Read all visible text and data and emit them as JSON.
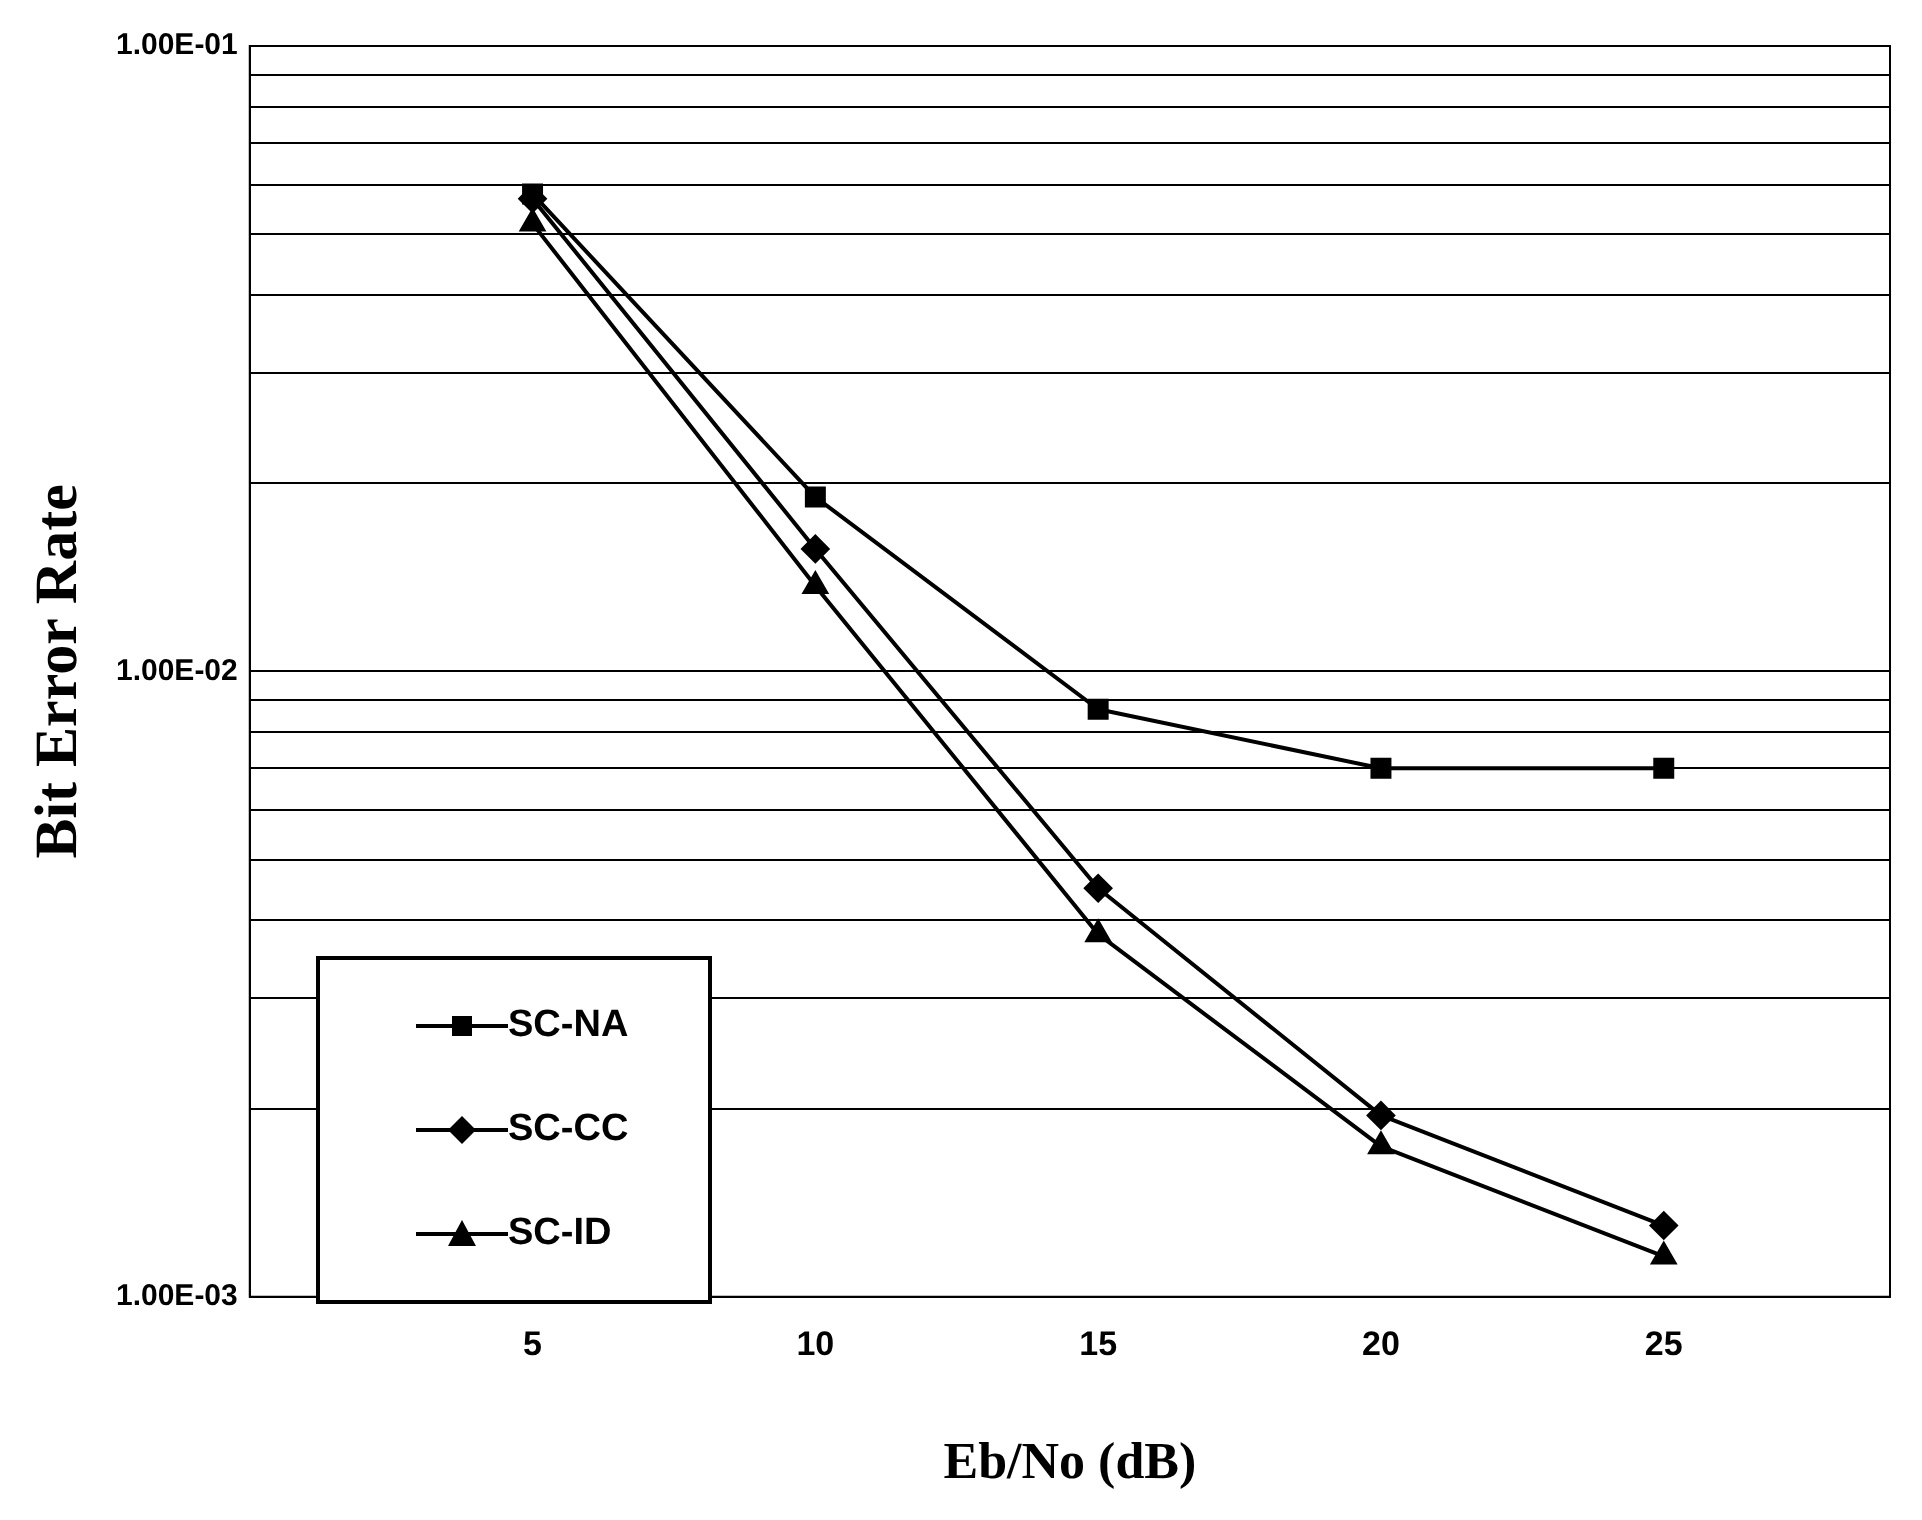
{
  "chart_data": {
    "type": "line",
    "xlabel": "Eb/No (dB)",
    "ylabel": "Bit Error Rate",
    "log": "y",
    "grid": "y",
    "legend": "bottom left",
    "line_style": "solid",
    "xlim": [
      0,
      29
    ],
    "xticks": [
      5,
      10,
      15,
      20,
      25
    ],
    "ylim": [
      0.001,
      0.1
    ],
    "yticks": [
      {
        "value": 0.001,
        "label": "1.00E-03"
      },
      {
        "value": 0.002,
        "label": null
      },
      {
        "value": 0.003,
        "label": null
      },
      {
        "value": 0.004,
        "label": null
      },
      {
        "value": 0.005,
        "label": null
      },
      {
        "value": 0.006,
        "label": null
      },
      {
        "value": 0.007,
        "label": null
      },
      {
        "value": 0.008,
        "label": null
      },
      {
        "value": 0.009,
        "label": null
      },
      {
        "value": 0.01,
        "label": "1.00E-02"
      },
      {
        "value": 0.02,
        "label": null
      },
      {
        "value": 0.03,
        "label": null
      },
      {
        "value": 0.04,
        "label": null
      },
      {
        "value": 0.05,
        "label": null
      },
      {
        "value": 0.06,
        "label": null
      },
      {
        "value": 0.07,
        "label": null
      },
      {
        "value": 0.08,
        "label": null
      },
      {
        "value": 0.09,
        "label": null
      },
      {
        "value": 0.1,
        "label": "1.00E-01"
      }
    ],
    "x": [
      5,
      10,
      15,
      20,
      25
    ],
    "series": [
      {
        "name": "SC-NA",
        "color": "#000000",
        "marker": "square",
        "values": [
          0.058,
          0.019,
          0.0087,
          0.007,
          0.007
        ]
      },
      {
        "name": "SC-CC",
        "color": "#000000",
        "marker": "diamond",
        "values": [
          0.057,
          0.0157,
          0.0045,
          0.00195,
          0.0013
        ]
      },
      {
        "name": "SC-ID",
        "color": "#000000",
        "marker": "triangle",
        "values": [
          0.052,
          0.0137,
          0.0038,
          0.00174,
          0.00116
        ]
      }
    ]
  }
}
